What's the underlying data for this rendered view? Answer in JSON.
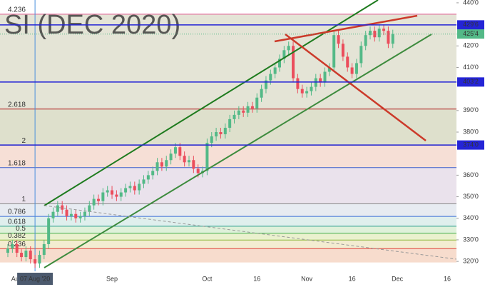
{
  "chart_data": {
    "type": "candlestick",
    "watermark": "SI (DEC 2020)",
    "categories": [
      null,
      null,
      "Aug",
      null,
      null,
      null,
      "07 Aug '20",
      null,
      null,
      null,
      null,
      null,
      null,
      null,
      null,
      null,
      null,
      null,
      null,
      null,
      null,
      null,
      null,
      "Sep",
      null,
      null,
      null,
      null,
      null,
      null,
      null,
      null,
      null,
      null,
      null,
      null,
      null,
      null,
      null,
      null,
      null,
      null,
      null,
      null,
      "Oct",
      null,
      null,
      null,
      null,
      null,
      null,
      null,
      null,
      null,
      null,
      "16",
      null,
      null,
      null,
      null,
      null,
      null,
      null,
      null,
      null,
      null,
      "Nov",
      null,
      null,
      null,
      null,
      null,
      null,
      null,
      null,
      null,
      "16",
      null,
      null,
      null,
      null,
      null,
      null,
      null,
      null,
      null,
      "Dec",
      null,
      null,
      null,
      null,
      null,
      null,
      null,
      null,
      null,
      null,
      "16",
      null
    ],
    "crosshair_category": 6,
    "open": [
      324,
      326,
      328,
      324,
      322,
      325,
      321,
      319,
      323,
      328,
      340,
      343,
      346,
      344,
      341,
      342,
      340,
      341,
      343,
      346,
      349,
      348,
      352,
      353,
      351,
      350,
      352,
      354,
      355,
      353,
      356,
      358,
      360,
      362,
      366,
      364,
      367,
      370,
      373,
      369,
      366,
      367,
      363,
      361,
      362,
      375,
      378,
      380,
      379,
      382,
      386,
      388,
      390,
      389,
      392,
      391,
      396,
      400,
      404,
      407,
      410,
      414,
      418,
      420,
      405,
      400,
      398,
      399,
      401,
      405,
      403,
      408,
      410,
      425,
      421,
      415,
      410,
      407,
      412,
      420,
      425,
      427,
      424,
      428,
      427,
      421,
      null,
      null,
      null,
      null,
      null,
      null,
      null,
      null,
      null,
      null,
      null,
      null,
      null
    ],
    "high": [
      328,
      330,
      330,
      326,
      327,
      327,
      323,
      325,
      330,
      342,
      345,
      348,
      348,
      346,
      344,
      344,
      343,
      345,
      348,
      351,
      351,
      354,
      355,
      355,
      353,
      354,
      356,
      357,
      357,
      358,
      360,
      362,
      364,
      368,
      368,
      369,
      372,
      375,
      375,
      371,
      369,
      369,
      365,
      364,
      377,
      380,
      382,
      382,
      384,
      388,
      390,
      392,
      392,
      394,
      394,
      398,
      402,
      406,
      409,
      412,
      416,
      420,
      422,
      422,
      407,
      402,
      401,
      403,
      407,
      407,
      410,
      412,
      427,
      427,
      423,
      417,
      412,
      414,
      422,
      427,
      429,
      429,
      430,
      430,
      429,
      427.5,
      null,
      null,
      null,
      null,
      null,
      null,
      null,
      null,
      null,
      null,
      null,
      null,
      null
    ],
    "low": [
      322,
      324,
      322,
      320,
      320,
      319,
      317,
      317,
      321,
      326,
      338,
      341,
      342,
      339,
      339,
      338,
      338,
      339,
      341,
      344,
      346,
      346,
      350,
      349,
      348,
      348,
      350,
      352,
      351,
      351,
      354,
      356,
      358,
      360,
      362,
      362,
      365,
      368,
      367,
      364,
      364,
      361,
      359,
      359,
      360,
      373,
      376,
      377,
      377,
      380,
      384,
      386,
      387,
      387,
      389,
      389,
      394,
      398,
      402,
      405,
      408,
      412,
      416,
      403,
      398,
      396,
      396,
      397,
      399,
      401,
      401,
      406,
      408,
      419,
      413,
      408,
      405,
      405,
      410,
      418,
      423,
      422,
      422,
      425,
      419,
      419,
      null,
      null,
      null,
      null,
      null,
      null,
      null,
      null,
      null,
      null,
      null,
      null,
      null
    ],
    "close": [
      326,
      328,
      324,
      322,
      325,
      321,
      319,
      323,
      328,
      340,
      343,
      346,
      344,
      341,
      342,
      340,
      341,
      343,
      346,
      349,
      348,
      352,
      353,
      351,
      350,
      352,
      354,
      355,
      353,
      356,
      358,
      360,
      362,
      366,
      364,
      367,
      370,
      373,
      369,
      366,
      367,
      363,
      361,
      362,
      375,
      378,
      380,
      379,
      382,
      386,
      388,
      390,
      389,
      392,
      391,
      396,
      400,
      404,
      407,
      410,
      414,
      418,
      420,
      405,
      400,
      398,
      399,
      401,
      405,
      403,
      408,
      410,
      425,
      421,
      415,
      410,
      407,
      412,
      420,
      425,
      427,
      424,
      428,
      427,
      421,
      425.5,
      null,
      null,
      null,
      null,
      null,
      null,
      null,
      null,
      null,
      null,
      null,
      null,
      null
    ],
    "up_color": "#53b987",
    "down_color": "#eb4d5c",
    "ylim": [
      315.4,
      441.3
    ],
    "yticks": [
      {
        "value": 320,
        "label": "320'0"
      },
      {
        "value": 330,
        "label": "330'0"
      },
      {
        "value": 340,
        "label": "340'0"
      },
      {
        "value": 350,
        "label": "350'0"
      },
      {
        "value": 360,
        "label": "360'0"
      },
      {
        "value": 380,
        "label": "380'0"
      },
      {
        "value": 390,
        "label": "390'0"
      },
      {
        "value": 410,
        "label": "410'0"
      },
      {
        "value": 420,
        "label": "420'0"
      },
      {
        "value": 440,
        "label": "440'0"
      }
    ],
    "levels": [
      {
        "value": 429.75,
        "label": "429'6"
      },
      {
        "value": 403.25,
        "label": "403'2"
      },
      {
        "value": 374,
        "label": "374'0"
      }
    ],
    "level_color": "#2424d6",
    "last_price": {
      "value": 425.5,
      "label": "425'4"
    },
    "fib": {
      "price_at_0": 319.5,
      "price_at_1": 346.7,
      "levels": [
        0.236,
        0.382,
        0.5,
        0.618,
        0.786,
        1,
        1.618,
        2,
        2.618,
        4.236
      ],
      "colors": [
        "#e0413b",
        "#8cb83a",
        "#3fae4a",
        "#2a9d8f",
        "#3a6fd8",
        "#888888",
        "#3a5fcd",
        "#888888",
        "#b22222",
        "#e0558a"
      ],
      "band_colors": [
        "#f6d6c4",
        "#f1e9c9",
        "#e6efc6",
        "#d9efd3",
        "#d9ecea",
        "#e3e8ee",
        "#e6dde9",
        "#f5d9cf",
        "#d8dac3",
        "#dfdfcf"
      ]
    }
  }
}
